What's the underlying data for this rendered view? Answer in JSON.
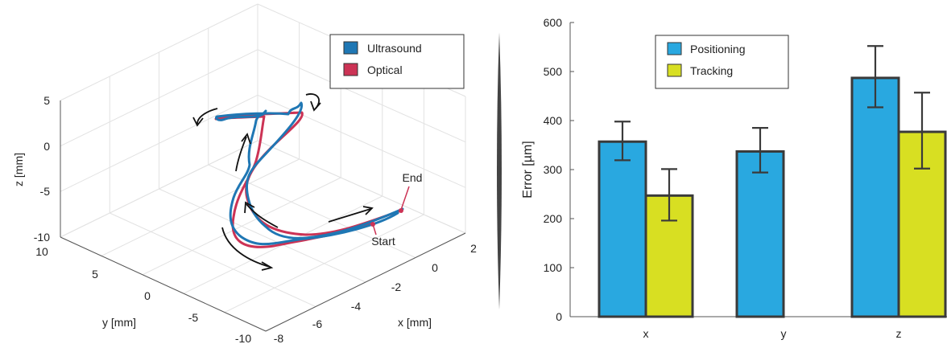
{
  "chart_data": [
    {
      "type": "line3d",
      "xlabel": "x [mm]",
      "ylabel": "y [mm]",
      "zlabel": "z [mm]",
      "xticks": [
        "2",
        "0",
        "-2",
        "-4",
        "-6",
        "-8"
      ],
      "yticks": [
        "10",
        "5",
        "0",
        "-5",
        "-10"
      ],
      "zticks": [
        "5",
        "0",
        "-5",
        "-10"
      ],
      "xlim": [
        -8,
        2
      ],
      "ylim": [
        -10,
        10
      ],
      "zlim": [
        -10,
        5
      ],
      "grid": true,
      "legend": {
        "position": "top-right",
        "entries": [
          "Ultrasound",
          "Optical"
        ]
      },
      "series": [
        {
          "name": "Ultrasound",
          "color": "#1f77b4"
        },
        {
          "name": "Optical",
          "color": "#cc3355"
        }
      ],
      "annotations": [
        "End",
        "Start"
      ],
      "annotation_color": "#cc3355"
    },
    {
      "type": "bar",
      "categories": [
        "x",
        "y",
        "z"
      ],
      "ylabel": "Error [µm]",
      "ylim": [
        0,
        600
      ],
      "yticks": [
        "0",
        "100",
        "200",
        "300",
        "400",
        "500",
        "600"
      ],
      "legend": {
        "position": "top-left",
        "entries": [
          "Positioning",
          "Tracking"
        ]
      },
      "series": [
        {
          "name": "Positioning",
          "color": "#29a8e0",
          "values": [
            357,
            337,
            487
          ],
          "error_low": [
            319,
            294,
            427
          ],
          "error_high": [
            398,
            385,
            552
          ]
        },
        {
          "name": "Tracking",
          "color": "#d8df22",
          "values": [
            247,
            null,
            377
          ],
          "error_low": [
            196,
            null,
            302
          ],
          "error_high": [
            301,
            null,
            457
          ]
        }
      ]
    }
  ]
}
